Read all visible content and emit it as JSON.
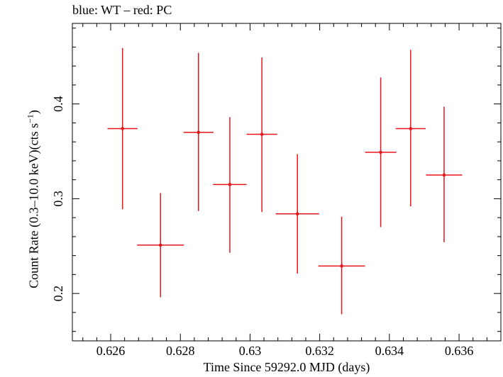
{
  "chart_data": {
    "type": "scatter",
    "title": "blue: WT – red: PC",
    "xlabel": "Time Since 59292.0 MJD (days)",
    "ylabel": "Count Rate (0.3–10.0 keV)(cts s",
    "ylabel_sup": "−1",
    "ylabel_close": ")",
    "xlim": [
      0.6249,
      0.6372
    ],
    "ylim": [
      0.15,
      0.485
    ],
    "xticks": [
      0.626,
      0.628,
      0.63,
      0.632,
      0.634,
      0.636
    ],
    "xtick_labels": [
      "0.626",
      "0.628",
      "0.63",
      "0.632",
      "0.634",
      "0.636"
    ],
    "yticks": [
      0.2,
      0.3,
      0.4
    ],
    "ytick_labels": [
      "0.2",
      "0.3",
      "0.4"
    ],
    "grid": false,
    "series": [
      {
        "color": "#e8141c",
        "points": [
          {
            "x": 0.62634,
            "y": 0.374,
            "xerr": 0.00043,
            "ylo": 0.289,
            "yhi": 0.459
          },
          {
            "x": 0.62743,
            "y": 0.251,
            "xerr": 0.00067,
            "ylo": 0.196,
            "yhi": 0.306
          },
          {
            "x": 0.62852,
            "y": 0.37,
            "xerr": 0.00043,
            "ylo": 0.287,
            "yhi": 0.454
          },
          {
            "x": 0.62942,
            "y": 0.315,
            "xerr": 0.00048,
            "ylo": 0.243,
            "yhi": 0.386
          },
          {
            "x": 0.63034,
            "y": 0.368,
            "xerr": 0.00044,
            "ylo": 0.286,
            "yhi": 0.449
          },
          {
            "x": 0.63136,
            "y": 0.284,
            "xerr": 0.00062,
            "ylo": 0.221,
            "yhi": 0.347
          },
          {
            "x": 0.63263,
            "y": 0.229,
            "xerr": 0.00067,
            "ylo": 0.178,
            "yhi": 0.281
          },
          {
            "x": 0.63375,
            "y": 0.349,
            "xerr": 0.00045,
            "ylo": 0.27,
            "yhi": 0.428
          },
          {
            "x": 0.63461,
            "y": 0.374,
            "xerr": 0.00043,
            "ylo": 0.292,
            "yhi": 0.457
          },
          {
            "x": 0.63557,
            "y": 0.325,
            "xerr": 0.00052,
            "ylo": 0.254,
            "yhi": 0.397
          }
        ]
      }
    ]
  }
}
